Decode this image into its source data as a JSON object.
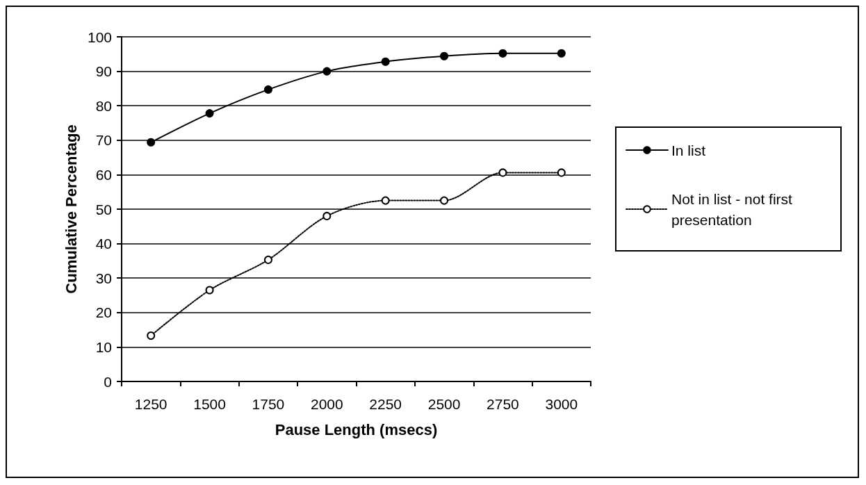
{
  "chart_data": {
    "type": "line",
    "xlabel": "Pause Length (msecs)",
    "ylabel": "Cumulative Percentage",
    "categories": [
      "1250",
      "1500",
      "1750",
      "2000",
      "2250",
      "2500",
      "2750",
      "3000"
    ],
    "series": [
      {
        "name": "In list",
        "color": "#000000",
        "line_style": "solid",
        "values": [
          69.4,
          77.8,
          84.7,
          90,
          92.8,
          94.4,
          95.2,
          95.2
        ]
      },
      {
        "name": "Not in list - not first presentation",
        "color": "#000000",
        "line_style": "dotted",
        "values": [
          13.3,
          26.5,
          35.3,
          48,
          52.5,
          52.5,
          60.6,
          60.6
        ]
      }
    ],
    "ylim": [
      0,
      100
    ],
    "yticks": [
      0,
      10,
      20,
      30,
      40,
      50,
      60,
      70,
      80,
      90,
      100
    ],
    "grid": "y",
    "legend": "right",
    "marker": "circle"
  }
}
